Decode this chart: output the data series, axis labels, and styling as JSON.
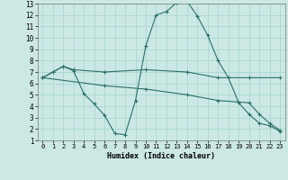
{
  "xlabel": "Humidex (Indice chaleur)",
  "background_color": "#cce8e4",
  "grid_color": "#a8d8d0",
  "line_color": "#2a7068",
  "xlim": [
    -0.5,
    23.5
  ],
  "ylim": [
    1,
    13
  ],
  "xticks": [
    0,
    1,
    2,
    3,
    4,
    5,
    6,
    7,
    8,
    9,
    10,
    11,
    12,
    13,
    14,
    15,
    16,
    17,
    18,
    19,
    20,
    21,
    22,
    23
  ],
  "yticks": [
    1,
    2,
    3,
    4,
    5,
    6,
    7,
    8,
    9,
    10,
    11,
    12,
    13
  ],
  "line1_x": [
    0,
    1,
    2,
    3,
    4,
    5,
    6,
    7,
    8,
    9,
    10,
    11,
    12,
    13,
    14,
    15,
    16,
    17,
    18,
    19,
    20,
    21,
    22,
    23
  ],
  "line1_y": [
    6.5,
    7.0,
    7.5,
    7.1,
    5.1,
    4.2,
    3.2,
    1.6,
    1.5,
    4.5,
    9.3,
    12.0,
    12.3,
    13.1,
    13.2,
    11.9,
    10.2,
    8.0,
    6.5,
    4.3,
    3.3,
    2.5,
    2.3,
    1.8
  ],
  "line2_x": [
    0,
    2,
    3,
    6,
    10,
    14,
    17,
    20,
    23
  ],
  "line2_y": [
    6.5,
    7.5,
    7.2,
    7.0,
    7.2,
    7.0,
    6.5,
    6.5,
    6.5
  ],
  "line3_x": [
    0,
    6,
    10,
    14,
    17,
    20,
    21,
    22,
    23
  ],
  "line3_y": [
    6.5,
    5.8,
    5.5,
    5.0,
    4.5,
    4.3,
    3.3,
    2.5,
    1.9
  ]
}
